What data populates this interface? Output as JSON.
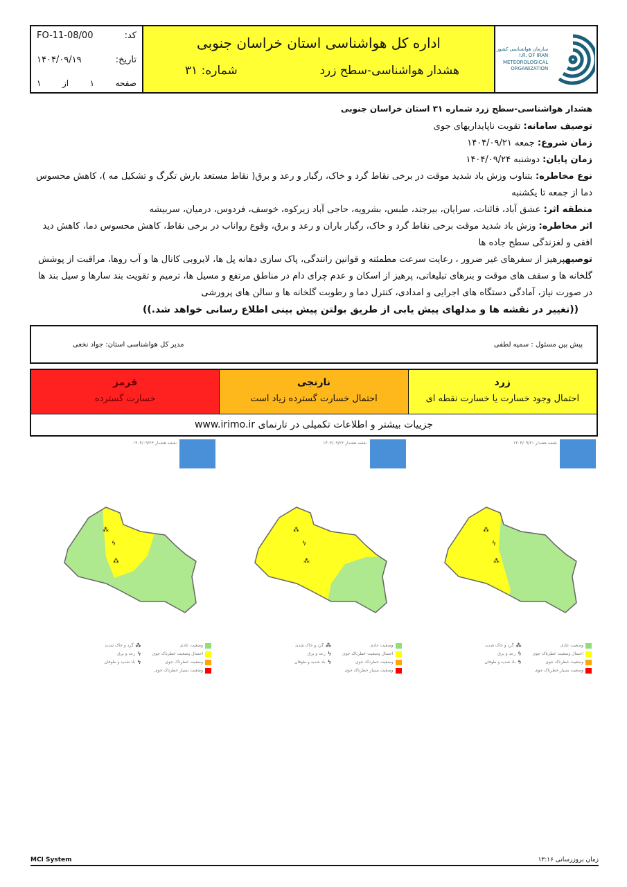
{
  "header": {
    "code_label": "کد:",
    "code": "FO-11-08/00",
    "date_label": "تاریخ:",
    "date": "۱۴۰۴/۰۹/۱۹",
    "page_label": "صفحه",
    "page_num": "۱",
    "page_of": "از",
    "page_total": "۱",
    "title": "اداره کل هواشناسی استان خراسان جنوبی",
    "subtitle": "هشدار هواشناسی-سطح زرد",
    "number_label": "شماره: ۳۱",
    "logo_text": [
      "سازمان هواشناسی کشور",
      "I.R. OF IRAN",
      "METEOROLOGICAL",
      "ORGANIZATION"
    ]
  },
  "body": {
    "heading": "هشدار هواشناسی-سطح زرد شماره ۳۱ استان خراسان جنوبی",
    "system_label": "توصیف سامانه:",
    "system": "تقویت ناپایداریهای جوی",
    "start_label": "زمان شروع:",
    "start": "جمعه ۱۴۰۴/۰۹/۲۱",
    "end_label": "زمان پایان:",
    "end": "دوشنبه ۱۴۰۴/۰۹/۲۴",
    "hazard_label": "نوع مخاطره:",
    "hazard": "بتناوب وزش باد شدید موقت در برخی نقاط گرد و خاک، رگبار و رعد و برق( نقاط مستعد بارش تگرگ و تشکیل مه )، کاهش محسوس دما از جمعه تا یکشنبه",
    "area_label": "منطقه اثر:",
    "area": "عشق آباد، قائنات، سرایان، بیرجند، طبس، بشرویه، حاجی آباد زیرکوه، خوسف، فردوس، درمیان، سربیشه",
    "effect_label": "اثر مخاطره:",
    "effect": "وزش باد شدید موقت برخی نقاط گرد و خاک، رگبار باران و رعد و برق، وقوع رواناب در برخی نقاط، کاهش محسوس دما، کاهش دید افقی و لغزندگی سطح جاده ها",
    "advice_label": "توصیه",
    "advice": "پرهیز از سفرهای غیر ضرور ، رعایت سرعت مطمئنه و قوانین رانندگی، پاک سازی دهانه پل ها، لایروبی کانال ها و آب روها، مراقبت از پوشش گلخانه ها و سقف های موقت و بنرهای تبلیغاتی، پرهیز از اسکان و عدم چرای دام در مناطق مرتفع و مسیل ها، ترمیم و تقویت بند سارها و سیل بند ها در صورت نیاز، آمادگی دستگاه های اجرایی و امدادی، کنترل دما و رطوبت گلخانه ها و سالن های پرورشی",
    "note": "((تغییر در نقشه ها و مدلهای پیش یابی از طریق بولتن پیش بینی اطلاع رسانی خواهد شد.))"
  },
  "sign": {
    "forecaster": "پیش بین مسئول : سمیه لطفی",
    "director": "مدیر کل هواشناسی استان:  جواد  نخعی"
  },
  "levels": [
    {
      "name": "زرد",
      "desc": "احتمال وجود خسارت یا خسارت نقطه ای",
      "color": "#ffff33"
    },
    {
      "name": "نارنجی",
      "desc": "احتمال خسارت گسترده زیاد است",
      "color": "#ffb81c"
    },
    {
      "name": "قرمز",
      "desc": "خسارت گسترده",
      "color": "#ff2020"
    }
  ],
  "website": "جزییات بیشتر و اطلاعات تکمیلی در تارنمای www.irimo.ir",
  "maps": [
    {
      "caption": "نقشه هشدار ۱۴۰۴/۰۹/۲۱",
      "pattern": "west-yellow"
    },
    {
      "caption": "نقشه هشدار ۱۴۰۴/۰۹/۲۲",
      "pattern": "mostly-yellow"
    },
    {
      "caption": "نقشه هشدار ۱۴۰۴/۰۹/۲۳",
      "pattern": "center-yellow"
    }
  ],
  "map_legend": {
    "levels": [
      {
        "label": "وضعیت عادی",
        "color": "#90e07a"
      },
      {
        "label": "احتمال وضعیت خطرناک جوی",
        "color": "#ffff00"
      },
      {
        "label": "وضعیت خطرناک جوی",
        "color": "#ffa500"
      },
      {
        "label": "وضعیت بسیار خطرناک جوی",
        "color": "#ff0000"
      }
    ],
    "symbols": [
      "گرد و خاک شدید",
      "رعد و برق",
      "باد شدید و طوفان"
    ]
  },
  "colors": {
    "yellow": "#ffff33",
    "green": "#aee88f",
    "map_yellow": "#ffff22"
  },
  "footer": {
    "system": "MCI System",
    "update_label": "زمان بروزرسانی",
    "update_time": "۱۳:۱۶"
  }
}
